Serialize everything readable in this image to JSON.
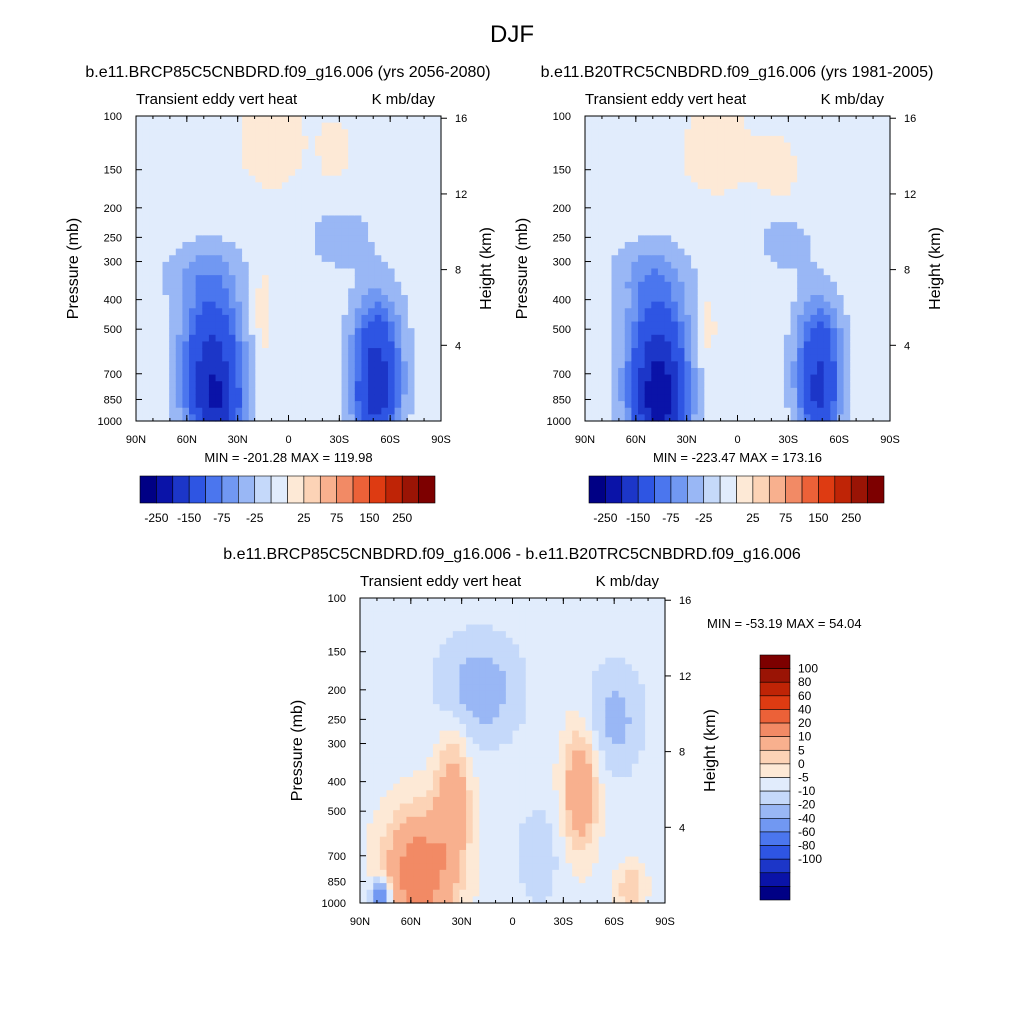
{
  "page_title": "DJF",
  "colors": {
    "neg": [
      "#000085",
      "#0a13a8",
      "#1c36c8",
      "#2e55e3",
      "#4b76ee",
      "#7198f2",
      "#99b7f5",
      "#c5d9fa",
      "#e1ecfc"
    ],
    "pos": [
      "#fde9d6",
      "#fcd3b6",
      "#f8b08e",
      "#f28a65",
      "#ec6138",
      "#de3b12",
      "#bf2406",
      "#9a1405",
      "#7d0000"
    ]
  },
  "chart_data": [
    {
      "id": "top-left",
      "type": "contour",
      "title": "b.e11.BRCP85C5CNBDRD.f09_g16.006 (yrs 2056-2080)",
      "left_label": "Transient eddy vert heat",
      "right_label": "K mb/day",
      "ylabel": "Pressure (mb)",
      "ylabel_right": "Height (km)",
      "x_ticks": [
        "90N",
        "60N",
        "30N",
        "0",
        "30S",
        "60S",
        "90S"
      ],
      "y_ticks": [
        "100",
        "150",
        "200",
        "250",
        "300",
        "400",
        "500",
        "700",
        "850",
        "1000"
      ],
      "y_right_ticks": [
        "16",
        "12",
        "8",
        "4"
      ],
      "stats": "MIN = -201.28   MAX = 119.98",
      "colorbar": {
        "orientation": "horizontal",
        "labels": [
          "-250",
          "-150",
          "-75",
          "-25",
          "25",
          "75",
          "150",
          "250"
        ]
      }
    },
    {
      "id": "top-right",
      "type": "contour",
      "title": "b.e11.B20TRC5CNBDRD.f09_g16.006 (yrs 1981-2005)",
      "left_label": "Transient eddy vert heat",
      "right_label": "K mb/day",
      "ylabel": "Pressure (mb)",
      "ylabel_right": "Height (km)",
      "x_ticks": [
        "90N",
        "60N",
        "30N",
        "0",
        "30S",
        "60S",
        "90S"
      ],
      "y_ticks": [
        "100",
        "150",
        "200",
        "250",
        "300",
        "400",
        "500",
        "700",
        "850",
        "1000"
      ],
      "y_right_ticks": [
        "16",
        "12",
        "8",
        "4"
      ],
      "stats": "MIN = -223.47   MAX = 173.16",
      "colorbar": {
        "orientation": "horizontal",
        "labels": [
          "-250",
          "-150",
          "-75",
          "-25",
          "25",
          "75",
          "150",
          "250"
        ]
      }
    },
    {
      "id": "bottom",
      "type": "contour",
      "title": "b.e11.BRCP85C5CNBDRD.f09_g16.006 - b.e11.B20TRC5CNBDRD.f09_g16.006",
      "left_label": "Transient eddy vert heat",
      "right_label": "K mb/day",
      "ylabel": "Pressure (mb)",
      "ylabel_right": "Height (km)",
      "x_ticks": [
        "90N",
        "60N",
        "30N",
        "0",
        "30S",
        "60S",
        "90S"
      ],
      "y_ticks": [
        "100",
        "150",
        "200",
        "250",
        "300",
        "400",
        "500",
        "700",
        "850",
        "1000"
      ],
      "y_right_ticks": [
        "16",
        "12",
        "8",
        "4"
      ],
      "stats": "MIN = -53.19   MAX =  54.04",
      "colorbar": {
        "orientation": "vertical",
        "labels": [
          "100",
          "80",
          "60",
          "40",
          "20",
          "10",
          "5",
          "0",
          "-5",
          "-10",
          "-20",
          "-40",
          "-60",
          "-80",
          "-100"
        ]
      }
    }
  ]
}
